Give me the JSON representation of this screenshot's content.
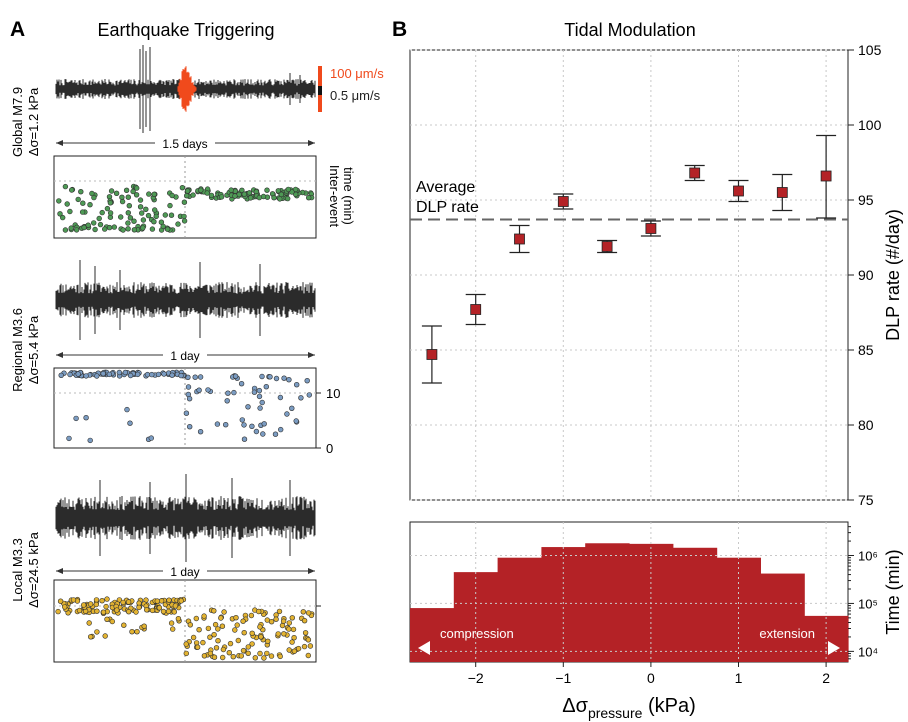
{
  "panel_a": {
    "letter": "A",
    "title": "Earthquake Triggering",
    "scale_high": "100 μm/s",
    "scale_low": "0.5 μm/s",
    "colors": {
      "trace": "#2b2b2b",
      "surge": "#f04a1c",
      "green": "#4e9a55",
      "blue": "#7b9cc2",
      "yellow": "#e3b331"
    },
    "rows": [
      {
        "key": "global",
        "label1": "Global M7.9",
        "label2": "Δσ=1.2 kPa",
        "span": "1.5 days",
        "yaxis": "Inter-event\ntime (min)",
        "ticks": [],
        "dot_color": "#4e9a55"
      },
      {
        "key": "regional",
        "label1": "Regional M3.6",
        "label2": "Δσ=5.4 kPa",
        "span": "1 day",
        "yaxis": "",
        "ticks": [
          "0",
          "10"
        ],
        "dot_color": "#7b9cc2"
      },
      {
        "key": "local",
        "label1": "Local M3.3",
        "label2": "Δσ=24.5 kPa",
        "span": "1 day",
        "yaxis": "",
        "ticks": [],
        "dot_color": "#e3b331"
      }
    ]
  },
  "panel_b": {
    "letter": "B",
    "title": "Tidal Modulation",
    "average_label_1": "Average",
    "average_label_2": "DLP rate",
    "ylabel_top": "DLP rate (#/day)",
    "ylabel_bottom": "Time (min)",
    "xlabel_main": "Δσ",
    "xlabel_sub": "pressure",
    "xlabel_unit": " (kPa)",
    "compression_label": "compression",
    "extension_label": "extension",
    "marker_color": "#b42226",
    "bar_color": "#b42226"
  },
  "chart_data": [
    {
      "type": "scatter",
      "title": "Tidal Modulation",
      "xlabel": "Δσpressure (kPa)",
      "ylabel": "DLP rate (#/day)",
      "xlim": [
        -2.75,
        2.25
      ],
      "ylim": [
        75,
        105
      ],
      "xticks": [
        -2,
        -1,
        0,
        1,
        2
      ],
      "yticks": [
        75,
        80,
        85,
        90,
        95,
        100,
        105
      ],
      "grid": true,
      "average_rate": 93.7,
      "x": [
        -2.5,
        -2.0,
        -1.5,
        -1.0,
        -0.5,
        0.0,
        0.5,
        1.0,
        1.5,
        2.0
      ],
      "y": [
        84.7,
        87.7,
        92.4,
        94.9,
        91.9,
        93.1,
        96.8,
        95.6,
        95.5,
        96.6
      ],
      "err_low": [
        82.8,
        86.7,
        91.5,
        94.4,
        91.5,
        92.6,
        96.3,
        94.9,
        94.3,
        93.8
      ],
      "err_high": [
        86.6,
        88.7,
        93.3,
        95.4,
        92.3,
        93.6,
        97.3,
        96.3,
        96.7,
        99.3
      ]
    },
    {
      "type": "bar",
      "xlabel": "Δσpressure (kPa)",
      "ylabel": "Time (min)",
      "yscale": "log",
      "ylim": [
        6000,
        5000000
      ],
      "yticks": [
        10000,
        100000,
        1000000
      ],
      "ytick_labels": [
        "10⁴",
        "10⁵",
        "10⁶"
      ],
      "bin_edges": [
        -2.75,
        -2.25,
        -1.75,
        -1.25,
        -0.75,
        -0.25,
        0.25,
        0.75,
        1.25,
        1.75,
        2.25
      ],
      "values": [
        80000,
        450000,
        900000,
        1500000,
        1800000,
        1750000,
        1450000,
        900000,
        420000,
        55000
      ]
    }
  ]
}
